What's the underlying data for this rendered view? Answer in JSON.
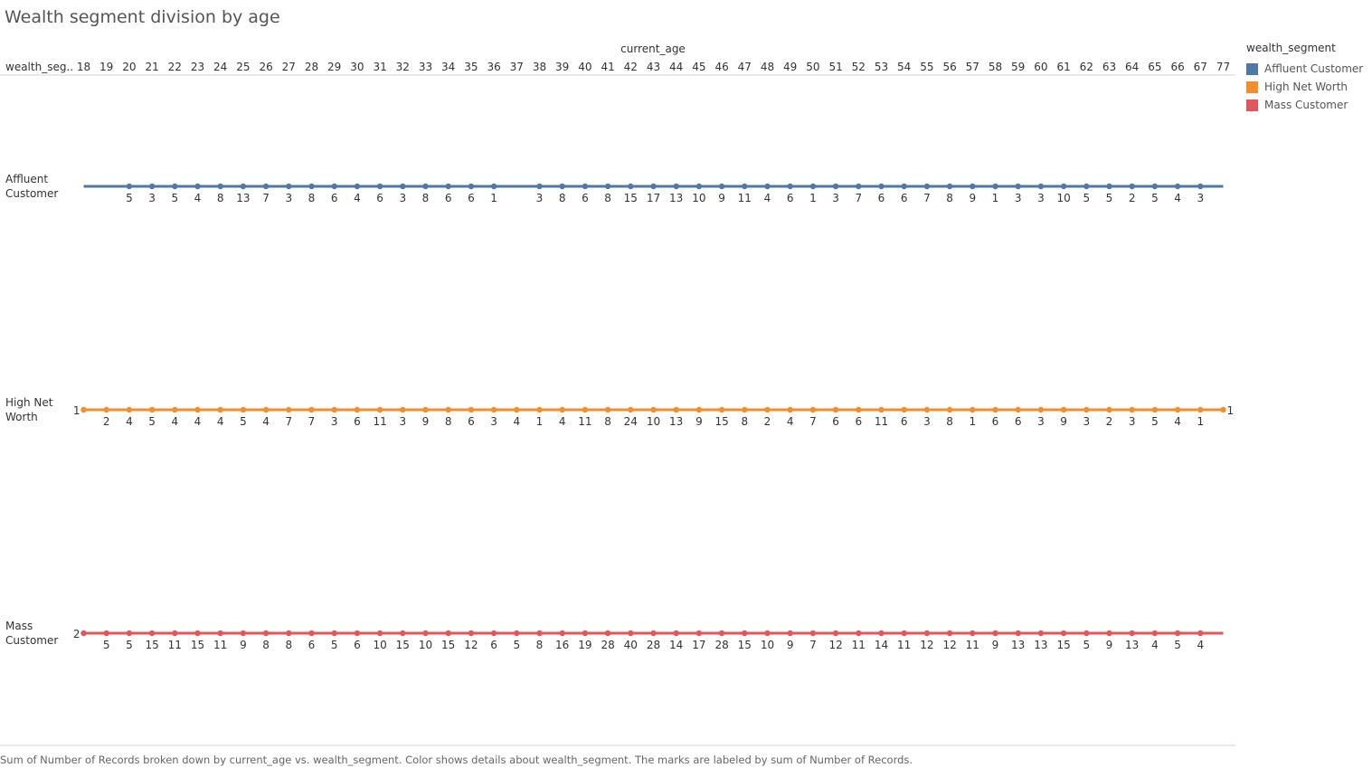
{
  "title": "Wealth segment division by age",
  "caption": "Sum of Number of Records broken down by current_age vs. wealth_segment.  Color shows details about wealth_segment.  The marks are labeled by sum of Number of Records.",
  "legend": {
    "title": "wealth_segment",
    "items": [
      {
        "label": "Affluent Customer",
        "color": "#4e79a7"
      },
      {
        "label": "High Net Worth",
        "color": "#f28e2b"
      },
      {
        "label": "Mass Customer",
        "color": "#e15759"
      }
    ]
  },
  "chart_data": {
    "type": "line",
    "title": "Wealth segment division by age",
    "xlabel": "current_age",
    "row_header": "wealth_seg..",
    "legend_position": "right",
    "grid": false,
    "x": [
      18,
      19,
      20,
      21,
      22,
      23,
      24,
      25,
      26,
      27,
      28,
      29,
      30,
      31,
      32,
      33,
      34,
      35,
      36,
      37,
      38,
      39,
      40,
      41,
      42,
      43,
      44,
      45,
      46,
      47,
      48,
      49,
      50,
      51,
      52,
      53,
      54,
      55,
      56,
      57,
      58,
      59,
      60,
      61,
      62,
      63,
      64,
      65,
      66,
      67,
      77
    ],
    "series": [
      {
        "name": "Affluent Customer",
        "row_label": [
          "Affluent",
          "Customer"
        ],
        "color": "#4e79a7",
        "values": [
          null,
          null,
          5,
          3,
          5,
          4,
          8,
          13,
          7,
          3,
          8,
          6,
          4,
          6,
          3,
          8,
          6,
          6,
          1,
          null,
          3,
          8,
          6,
          8,
          15,
          17,
          13,
          10,
          9,
          11,
          4,
          6,
          1,
          3,
          7,
          6,
          6,
          7,
          8,
          9,
          1,
          3,
          3,
          10,
          5,
          5,
          2,
          5,
          4,
          3,
          null
        ]
      },
      {
        "name": "High Net Worth",
        "row_label": [
          "High Net",
          "Worth"
        ],
        "color": "#f28e2b",
        "values": [
          1,
          2,
          4,
          5,
          4,
          4,
          4,
          5,
          4,
          7,
          7,
          3,
          6,
          11,
          3,
          9,
          8,
          6,
          3,
          4,
          1,
          4,
          11,
          8,
          24,
          10,
          13,
          9,
          15,
          8,
          2,
          4,
          7,
          6,
          6,
          11,
          6,
          3,
          8,
          1,
          6,
          6,
          3,
          9,
          3,
          2,
          3,
          5,
          4,
          1,
          1
        ]
      },
      {
        "name": "Mass Customer",
        "row_label": [
          "Mass",
          "Customer"
        ],
        "color": "#e15759",
        "values": [
          2,
          5,
          5,
          15,
          11,
          15,
          11,
          9,
          8,
          8,
          6,
          5,
          6,
          10,
          15,
          10,
          15,
          12,
          6,
          5,
          8,
          16,
          19,
          28,
          40,
          28,
          14,
          17,
          28,
          15,
          10,
          9,
          7,
          12,
          11,
          14,
          11,
          12,
          12,
          11,
          9,
          13,
          13,
          15,
          5,
          9,
          13,
          4,
          5,
          4,
          null
        ]
      }
    ]
  }
}
